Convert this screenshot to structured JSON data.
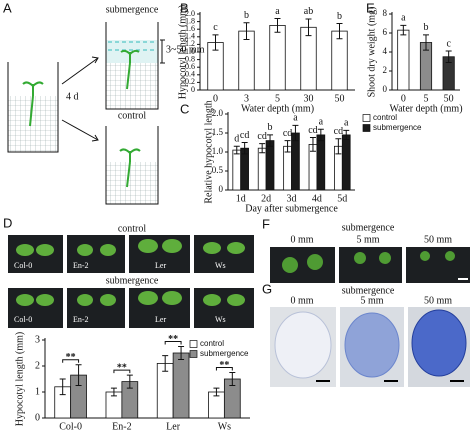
{
  "figure": {
    "panels": [
      "A",
      "B",
      "C",
      "D",
      "E",
      "F",
      "G"
    ],
    "a": {
      "top": "submergence",
      "depth": "3~50 mm",
      "time": "4 d",
      "bottom": "control"
    },
    "d": {
      "top": "control",
      "bottom": "submergence",
      "lines": [
        "Col-0",
        "En-2",
        "Ler",
        "Ws"
      ]
    },
    "f": {
      "title": "submergence",
      "labels": [
        "0 mm",
        "5 mm",
        "50 mm"
      ]
    },
    "g": {
      "title": "submergence",
      "labels": [
        "0 mm",
        "5 mm",
        "50 mm"
      ]
    }
  },
  "chart_data": [
    {
      "type": "bar",
      "y_label": "Hypocotyl length (mm)",
      "x_label": "Water depth (mm)",
      "categories": [
        "0",
        "3",
        "5",
        "30",
        "50"
      ],
      "series": [
        {
          "color": "#ffffff",
          "values": [
            1.25,
            1.55,
            1.7,
            1.65,
            1.55
          ],
          "errors": [
            0.2,
            0.22,
            0.18,
            0.22,
            0.2
          ],
          "letters": [
            "c",
            "b",
            "a",
            "ab",
            "b"
          ]
        }
      ],
      "ylim": [
        0,
        2
      ],
      "yticks": [
        0,
        0.2,
        0.4,
        0.6,
        0.8,
        {
          "value": 1,
          "label": "1.0"
        },
        1.2,
        1.4,
        1.6,
        1.8,
        {
          "value": 2,
          "label": "2.0"
        }
      ]
    },
    {
      "type": "bar",
      "y_label": "Shoot dry weight (mg)",
      "x_label": "Water depth (mm)",
      "categories": [
        "0",
        "5",
        "50"
      ],
      "series": [
        {
          "colors": [
            "#ffffff",
            "#8c8c8c",
            "#333333"
          ],
          "values": [
            6.3,
            5.0,
            3.5
          ],
          "errors": [
            0.5,
            0.8,
            0.6
          ],
          "letters": [
            "a",
            "b",
            "c"
          ]
        }
      ],
      "ylim": [
        0,
        8
      ],
      "yticks": [
        0,
        2,
        4,
        6,
        8
      ]
    },
    {
      "type": "bar",
      "y_label": "Relative hypocotyl length",
      "x_label": "Day after submergence",
      "categories": [
        "1d",
        "2d",
        "3d",
        "4d",
        "5d"
      ],
      "series": [
        {
          "name": "control",
          "color": "#ffffff",
          "values": [
            1.05,
            1.1,
            1.15,
            1.2,
            1.15
          ],
          "errors": [
            0.1,
            0.12,
            0.15,
            0.18,
            0.2
          ],
          "letters": [
            "d",
            "cd",
            "cd",
            "cd",
            "cd"
          ]
        },
        {
          "name": "submergence",
          "color": "#1a1a1a",
          "values": [
            1.1,
            1.3,
            1.5,
            1.45,
            1.45
          ],
          "errors": [
            0.15,
            0.15,
            0.2,
            0.15,
            0.12
          ],
          "letters": [
            "cd",
            "b",
            "a",
            "a",
            "a"
          ]
        }
      ],
      "ylim": [
        0,
        2
      ],
      "yticks": [
        0,
        0.5,
        {
          "value": 1,
          "label": "1.0"
        },
        1.5,
        {
          "value": 2,
          "label": "2.0"
        }
      ],
      "legend": "upper right"
    },
    {
      "type": "bar",
      "y_label": "Hypocotyl length (mm)",
      "categories": [
        "Col-0",
        "En-2",
        "Ler",
        "Ws"
      ],
      "series": [
        {
          "name": "control",
          "color": "#ffffff",
          "values": [
            1.2,
            1.0,
            2.1,
            1.0
          ],
          "errors": [
            0.3,
            0.15,
            0.3,
            0.15
          ]
        },
        {
          "name": "submergence",
          "color": "#8c8c8c",
          "values": [
            1.65,
            1.4,
            2.5,
            1.5
          ],
          "errors": [
            0.4,
            0.25,
            0.25,
            0.25
          ]
        }
      ],
      "significance": [
        "**",
        "**",
        "**",
        "**"
      ],
      "ylim": [
        0,
        3
      ],
      "yticks": [
        0,
        1,
        2,
        3
      ],
      "legend": "upper right"
    }
  ]
}
